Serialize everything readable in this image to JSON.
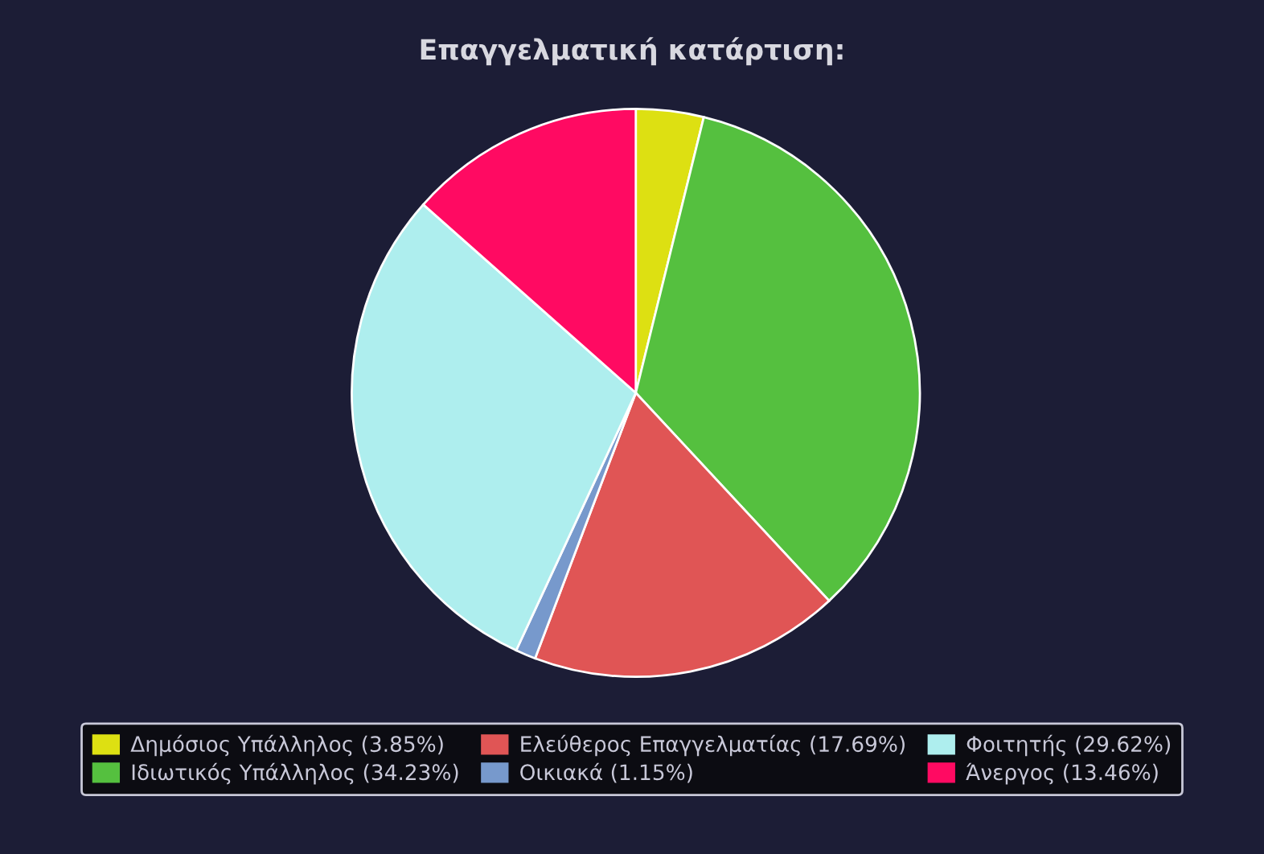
{
  "chart_data": {
    "type": "pie",
    "title": "Επαγγελματική κατάρτιση:",
    "categories": [
      "Δημόσιος Υπάλληλος (3.85%)",
      "Ιδιωτικός Υπάλληλος (34.23%)",
      "Ελεύθερος Επαγγελματίας (17.69%)",
      "Οικιακά (1.15%)",
      "Φοιτητής (29.62%)",
      "Άνεργος (13.46%)"
    ],
    "values": [
      3.85,
      34.23,
      17.69,
      1.15,
      29.62,
      13.46
    ],
    "colors": [
      "#dde012",
      "#55c03f",
      "#e05555",
      "#7799cc",
      "#aeeeee",
      "#ff0a62"
    ],
    "legend": "bottom"
  }
}
